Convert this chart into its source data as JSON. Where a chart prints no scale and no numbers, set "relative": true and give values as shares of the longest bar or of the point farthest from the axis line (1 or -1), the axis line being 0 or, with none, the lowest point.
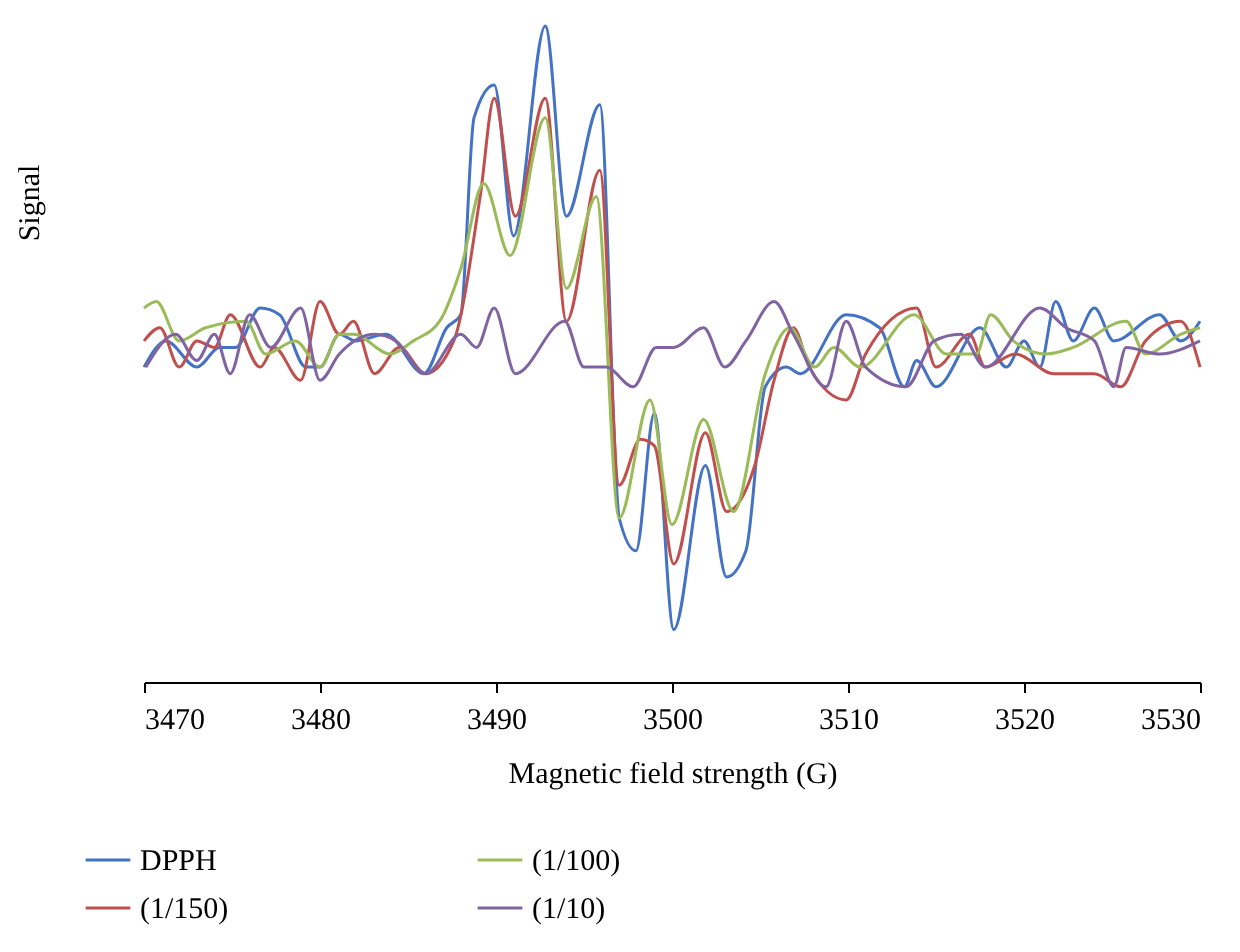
{
  "chart_data": {
    "type": "line",
    "relative": true,
    "xlabel": "Magnetic field strength (G)",
    "ylabel": "Signal",
    "xlim": [
      3470,
      3530
    ],
    "xticks": [
      3470,
      3480,
      3490,
      3500,
      3510,
      3520,
      3530
    ],
    "grid": false,
    "legend": "bottom",
    "marker": "none",
    "line_style": "solid",
    "series": [
      {
        "name": "DPPH",
        "color": "#4472c4",
        "x": [
          3470,
          3471.25,
          3473,
          3474.3,
          3475.2,
          3476.6,
          3477.7,
          3479.2,
          3480,
          3481.1,
          3482,
          3483.75,
          3485.9,
          3487.2,
          3488,
          3488.75,
          3489.9,
          3491,
          3492.8,
          3494,
          3495.9,
          3497,
          3497.95,
          3499,
          3500.1,
          3501.9,
          3503.1,
          3504.2,
          3505.3,
          3506.5,
          3507.3,
          3509.9,
          3511.8,
          3513.2,
          3513.9,
          3515,
          3517.5,
          3519,
          3520,
          3520.9,
          3521.8,
          3522.8,
          3524,
          3525.1,
          3527.7,
          3528.9,
          3530
        ],
        "values": [
          0.48,
          0.52,
          0.48,
          0.51,
          0.51,
          0.57,
          0.56,
          0.48,
          0.48,
          0.53,
          0.52,
          0.53,
          0.47,
          0.54,
          0.56,
          0.86,
          0.91,
          0.68,
          1,
          0.71,
          0.88,
          0.25,
          0.2,
          0.41,
          0.08,
          0.33,
          0.16,
          0.2,
          0.45,
          0.48,
          0.47,
          0.56,
          0.54,
          0.45,
          0.49,
          0.45,
          0.54,
          0.48,
          0.52,
          0.48,
          0.58,
          0.52,
          0.57,
          0.52,
          0.56,
          0.52,
          0.55
        ]
      },
      {
        "name": "(1/150)",
        "color": "#c0504d",
        "x": [
          3470,
          3470.9,
          3472,
          3473,
          3474,
          3474.9,
          3476.6,
          3477.4,
          3478.9,
          3480,
          3481.1,
          3481.9,
          3483.1,
          3484.5,
          3486,
          3487.6,
          3489.1,
          3489.9,
          3491.1,
          3492.8,
          3494,
          3495.9,
          3497,
          3498.2,
          3499,
          3500.1,
          3501.9,
          3503.1,
          3504.7,
          3505.8,
          3506.9,
          3507.8,
          3509.9,
          3511,
          3513.9,
          3515,
          3516.9,
          3517.8,
          3519.5,
          3521.7,
          3524,
          3525.5,
          3526.9,
          3528.9,
          3530
        ],
        "values": [
          0.52,
          0.54,
          0.48,
          0.52,
          0.51,
          0.56,
          0.48,
          0.51,
          0.46,
          0.58,
          0.53,
          0.55,
          0.47,
          0.51,
          0.47,
          0.52,
          0.74,
          0.89,
          0.71,
          0.89,
          0.55,
          0.78,
          0.3,
          0.37,
          0.36,
          0.18,
          0.38,
          0.26,
          0.33,
          0.46,
          0.54,
          0.48,
          0.43,
          0.5,
          0.57,
          0.48,
          0.53,
          0.48,
          0.5,
          0.47,
          0.47,
          0.45,
          0.52,
          0.55,
          0.48
        ]
      },
      {
        "name": "(1/100)",
        "color": "#9bbb59",
        "x": [
          3470,
          3470.7,
          3472,
          3473.5,
          3475.8,
          3476.9,
          3478.6,
          3480,
          3481.1,
          3481.9,
          3484,
          3485.3,
          3486.8,
          3488,
          3489.3,
          3490.8,
          3492.8,
          3494,
          3495.7,
          3497,
          3498.75,
          3500,
          3501.8,
          3503.5,
          3505.3,
          3506.7,
          3508.1,
          3509.2,
          3510.7,
          3513.75,
          3515.6,
          3517.3,
          3518.1,
          3519.4,
          3521.25,
          3522.8,
          3525.8,
          3526.9,
          3528.9,
          3530
        ],
        "values": [
          0.57,
          0.58,
          0.52,
          0.54,
          0.55,
          0.5,
          0.52,
          0.48,
          0.53,
          0.53,
          0.5,
          0.52,
          0.55,
          0.63,
          0.76,
          0.65,
          0.86,
          0.6,
          0.74,
          0.25,
          0.43,
          0.24,
          0.4,
          0.26,
          0.47,
          0.54,
          0.48,
          0.51,
          0.48,
          0.56,
          0.5,
          0.5,
          0.56,
          0.52,
          0.5,
          0.51,
          0.55,
          0.5,
          0.53,
          0.54
        ]
      },
      {
        "name": "(1/10)",
        "color": "#8064a2",
        "x": [
          3470.1,
          3471.8,
          3473,
          3474,
          3474.9,
          3476,
          3477.2,
          3478.9,
          3480,
          3481.1,
          3483.1,
          3484.3,
          3486,
          3488,
          3488.9,
          3489.9,
          3491.1,
          3493.9,
          3495,
          3496.25,
          3497.8,
          3499.1,
          3500.1,
          3501.8,
          3503,
          3504.2,
          3505.8,
          3506.9,
          3508.75,
          3509.9,
          3511,
          3513.3,
          3514.9,
          3516.4,
          3517.8,
          3520.9,
          3522.4,
          3524,
          3525.1,
          3525.8,
          3527.7,
          3530
        ],
        "values": [
          0.48,
          0.53,
          0.49,
          0.53,
          0.47,
          0.56,
          0.51,
          0.57,
          0.46,
          0.5,
          0.53,
          0.52,
          0.47,
          0.53,
          0.51,
          0.57,
          0.47,
          0.55,
          0.48,
          0.48,
          0.45,
          0.51,
          0.51,
          0.54,
          0.48,
          0.52,
          0.58,
          0.53,
          0.45,
          0.55,
          0.48,
          0.45,
          0.52,
          0.53,
          0.48,
          0.57,
          0.54,
          0.52,
          0.45,
          0.51,
          0.5,
          0.52
        ]
      }
    ]
  }
}
